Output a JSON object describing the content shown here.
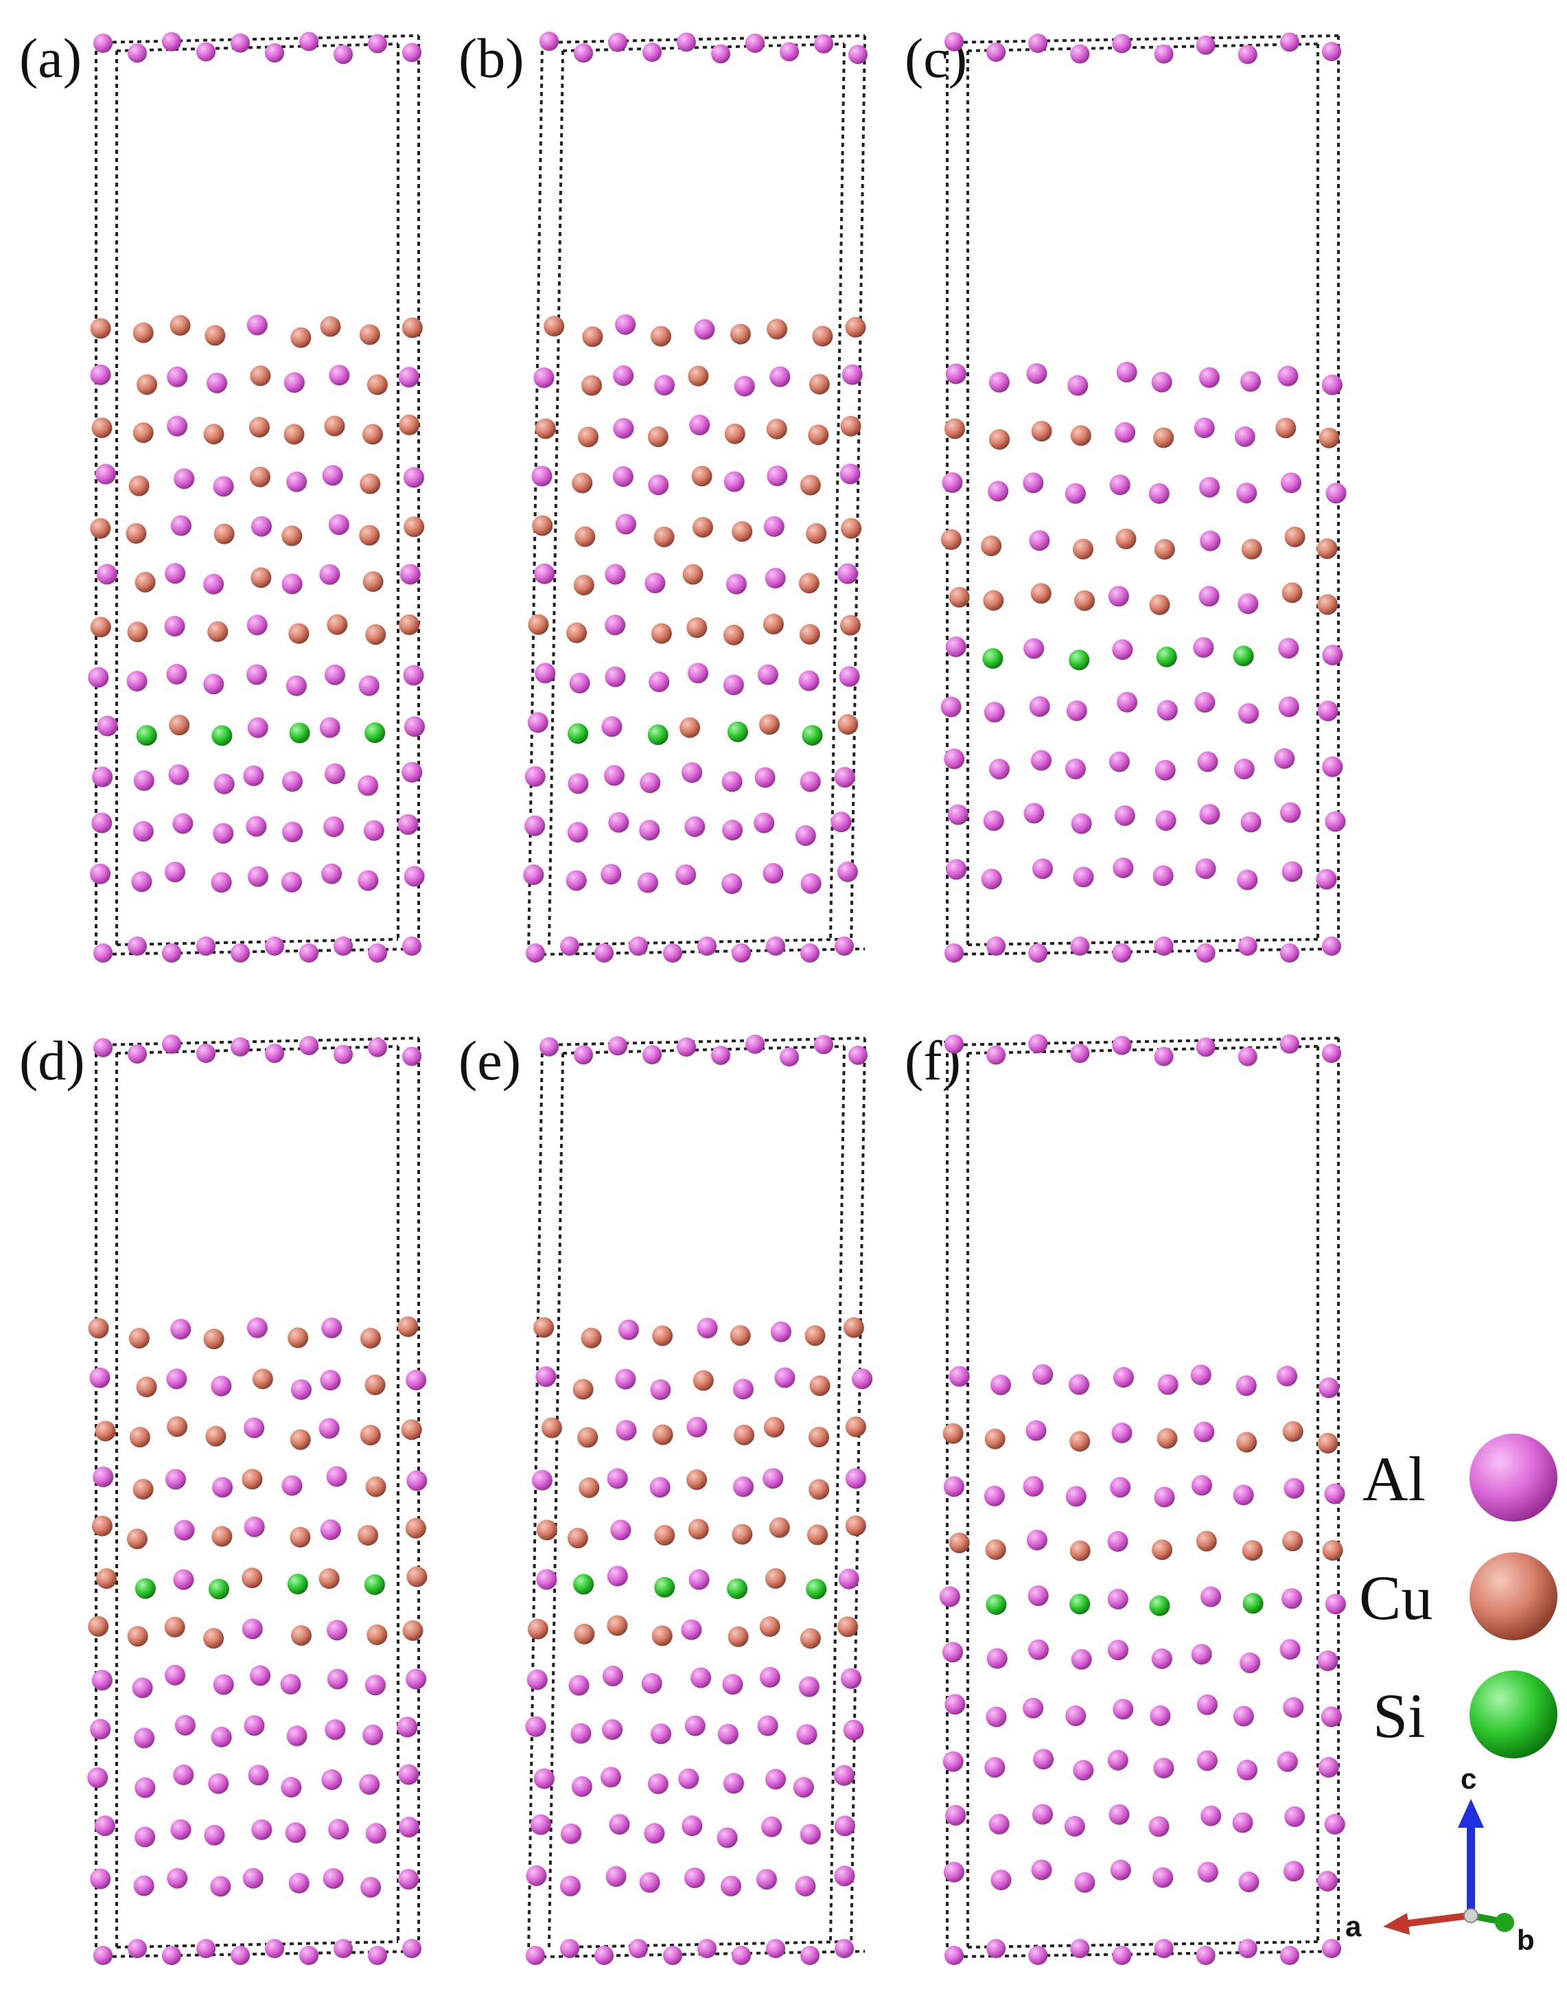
{
  "elements": [
    {
      "key": "Al",
      "label": "Al",
      "color": "#dd6ad9"
    },
    {
      "key": "Cu",
      "label": "Cu",
      "color": "#d9806a"
    },
    {
      "key": "Si",
      "label": "Si",
      "color": "#2fc92f"
    }
  ],
  "panels": [
    {
      "label": "(a)",
      "variant": "a"
    },
    {
      "label": "(b)",
      "variant": "b"
    },
    {
      "label": "(c)",
      "variant": "c"
    },
    {
      "label": "(d)",
      "variant": "a"
    },
    {
      "label": "(e)",
      "variant": "b"
    },
    {
      "label": "(f)",
      "variant": "c"
    }
  ],
  "axes": {
    "a": "a",
    "b": "b",
    "c": "c"
  }
}
